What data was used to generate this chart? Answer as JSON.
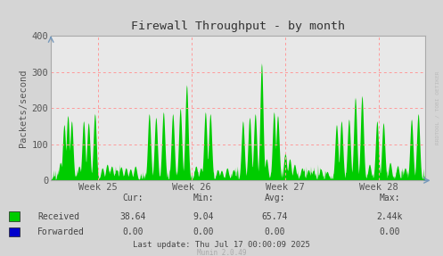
{
  "title": "Firewall Throughput - by month",
  "ylabel": "Packets/second",
  "ylim": [
    0,
    400
  ],
  "yticks": [
    0,
    100,
    200,
    300,
    400
  ],
  "week_labels": [
    "Week 25",
    "Week 26",
    "Week 27",
    "Week 28"
  ],
  "background_color": "#d5d5d5",
  "plot_bg_color": "#e8e8e8",
  "grid_color": "#ff9999",
  "received_color": "#00cc00",
  "forwarded_color": "#0000cc",
  "title_color": "#333333",
  "axis_color": "#555555",
  "stats_labels": [
    "Cur:",
    "Min:",
    "Avg:",
    "Max:"
  ],
  "stats_received": [
    "38.64",
    "9.04",
    "65.74",
    "2.44k"
  ],
  "stats_forwarded": [
    "0.00",
    "0.00",
    "0.00",
    "0.00"
  ],
  "last_update": "Last update: Thu Jul 17 00:00:09 2025",
  "munin_version": "Munin 2.0.49",
  "watermark": "RRDTOOL / TOBI OETIKER",
  "num_points": 1000
}
